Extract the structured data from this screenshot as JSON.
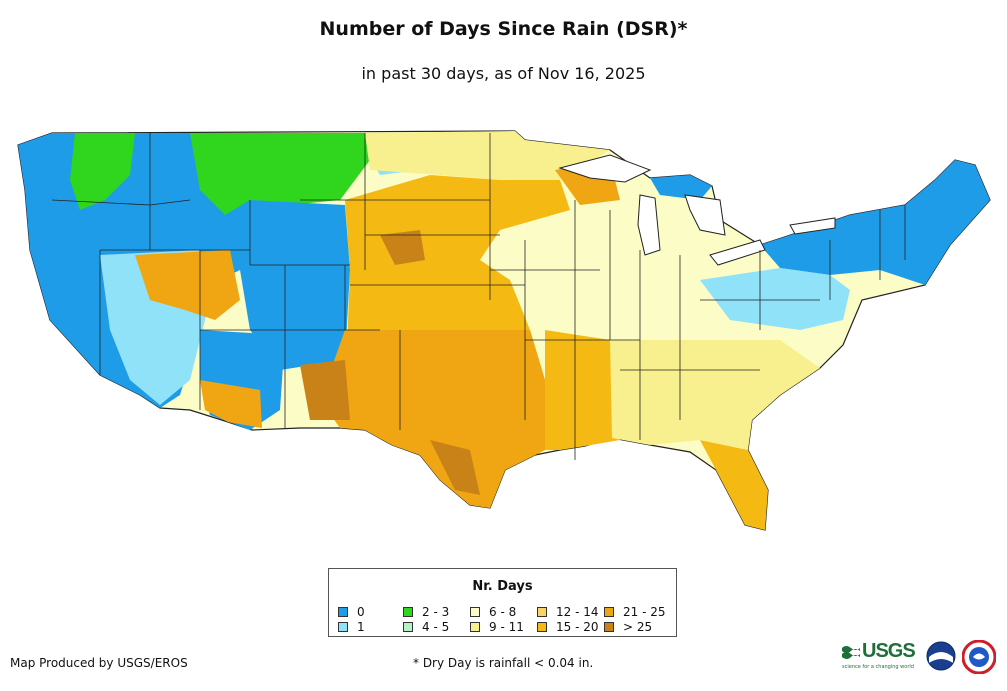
{
  "title": "Number of Days Since Rain (DSR)*",
  "subtitle": "in past 30 days, as of Nov 16, 2025",
  "legend": {
    "title": "Nr. Days",
    "items": [
      {
        "label": "0",
        "color": "#1e9ce8"
      },
      {
        "label": "1",
        "color": "#8fe2f8"
      },
      {
        "label": "2 - 3",
        "color": "#2fd61d"
      },
      {
        "label": "4 - 5",
        "color": "#b4f1c4"
      },
      {
        "label": "6 - 8",
        "color": "#fbfcc6"
      },
      {
        "label": "9 - 11",
        "color": "#f8f08e"
      },
      {
        "label": "12 - 14",
        "color": "#f8d466"
      },
      {
        "label": "15 - 20",
        "color": "#f5b914"
      },
      {
        "label": "21 - 25",
        "color": "#f0a512"
      },
      {
        "label": "> 25",
        "color": "#c98218"
      }
    ]
  },
  "footer": {
    "credit": "Map Produced by USGS/EROS",
    "note": "* Dry Day is rainfall < 0.04 in."
  },
  "logos": {
    "usgs_text": "USGS",
    "usgs_tagline": "science for a changing world"
  },
  "colors": {
    "border": "#222222",
    "background": "#ffffff"
  }
}
